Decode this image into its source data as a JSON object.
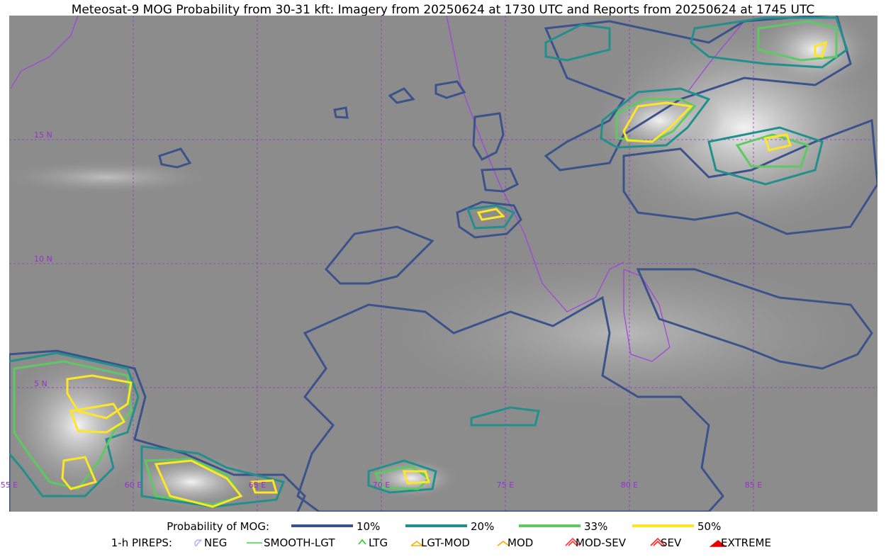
{
  "header": {
    "title": "Meteosat-9 MOG Probability from 30-31 kft: Imagery from 20250624 at 1730 UTC and Reports from 20250624 at 1745 UTC"
  },
  "map": {
    "lat_labels": [
      "15 N",
      "10 N",
      "5 N"
    ],
    "lon_labels": [
      "55 E",
      "60 E",
      "65 E",
      "70 E",
      "75 E",
      "80 E",
      "85 E"
    ]
  },
  "legend": {
    "probability_title": "Probability of MOG:",
    "probability_items": [
      {
        "label": "10%",
        "color": "#3b528b"
      },
      {
        "label": "20%",
        "color": "#21908d"
      },
      {
        "label": "33%",
        "color": "#5ec962"
      },
      {
        "label": "50%",
        "color": "#fde725"
      }
    ],
    "pireps_title": "1-h PIREPS:",
    "pireps_items": [
      {
        "label": "NEG",
        "color": "#b4b4ff"
      },
      {
        "label": "SMOOTH-LGT",
        "color": "#33dd33"
      },
      {
        "label": "LTG",
        "color": "#22cc22"
      },
      {
        "label": "LGT-MOD",
        "color": "#ffb000"
      },
      {
        "label": "MOD",
        "color": "#ffa500"
      },
      {
        "label": "MOD-SEV",
        "color": "#ff3333"
      },
      {
        "label": "SEV",
        "color": "#ff2222"
      },
      {
        "label": "EXTREME",
        "color": "#ee0000"
      }
    ]
  }
}
